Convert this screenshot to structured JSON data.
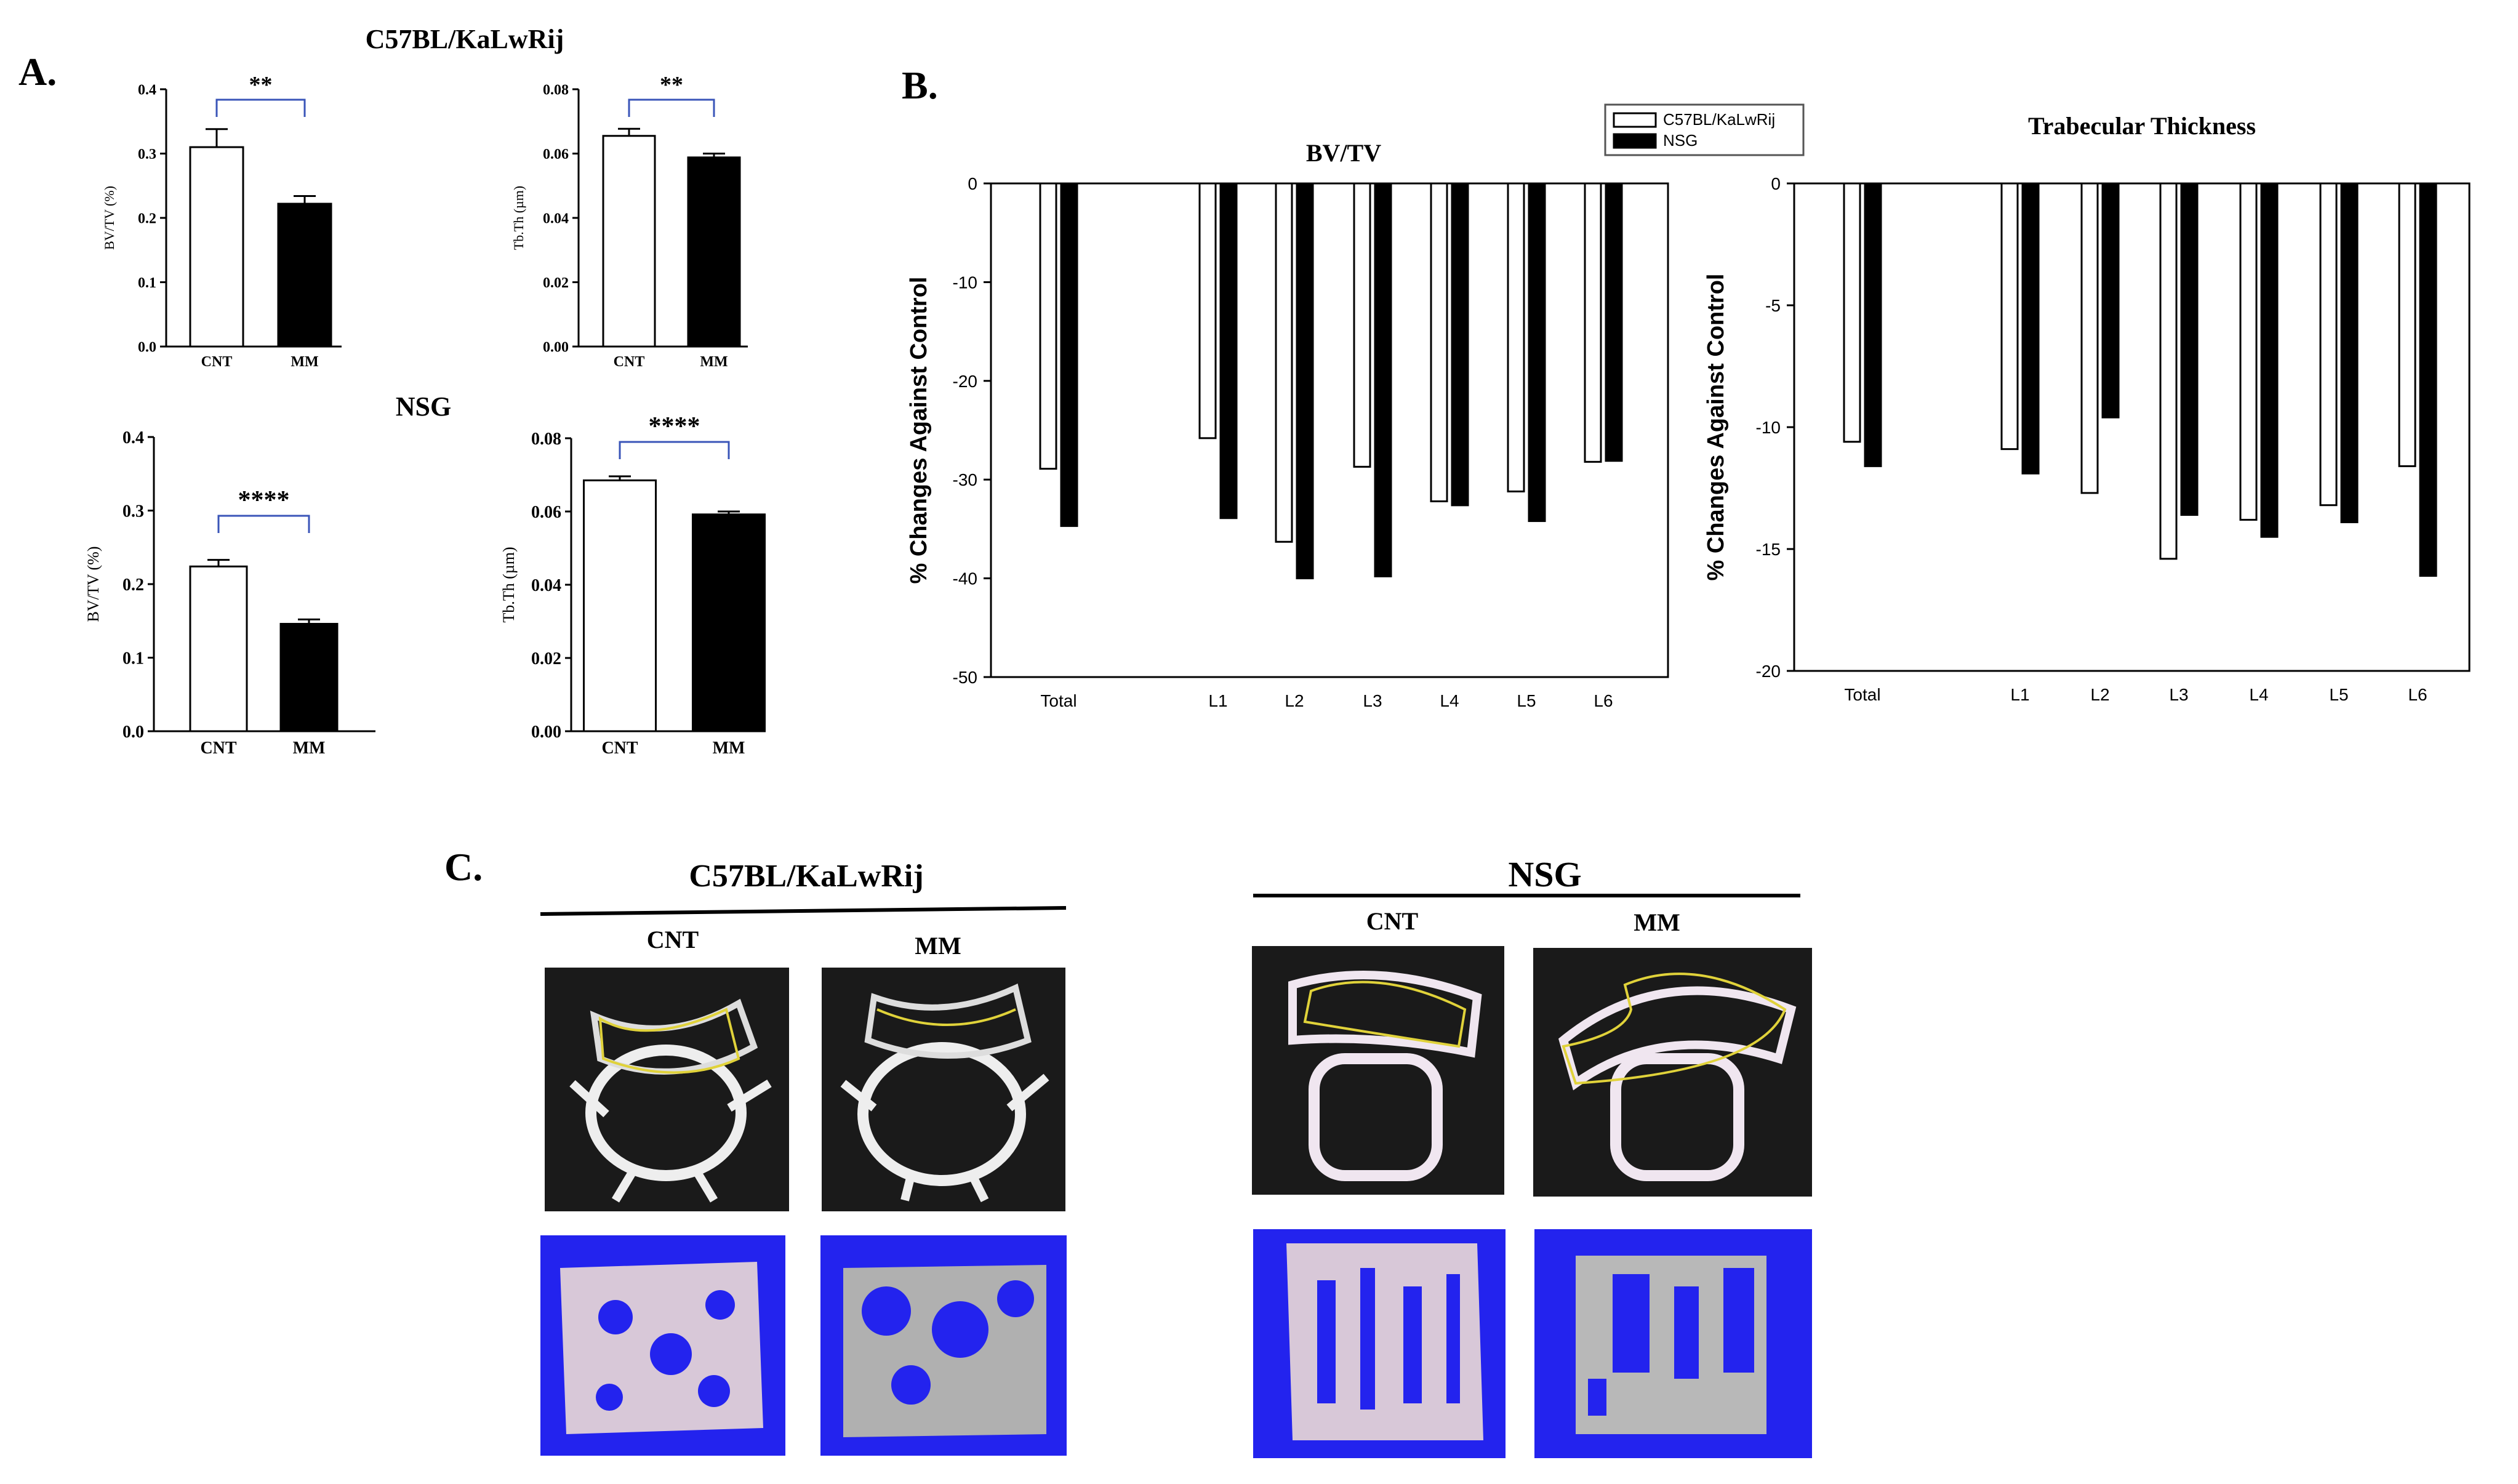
{
  "panels": {
    "a": {
      "label": "A.",
      "strain_top": "C57BL/KaLwRij",
      "strain_bottom": "NSG"
    },
    "b": {
      "label": "B.",
      "legend": [
        "C57BL/KaLwRij",
        "NSG"
      ]
    },
    "c": {
      "label": "C.",
      "groups": [
        {
          "title": "C57BL/KaLwRij",
          "col_labels": [
            "CNT",
            "MM"
          ]
        },
        {
          "title": "NSG",
          "col_labels": [
            "CNT",
            "MM"
          ]
        }
      ]
    }
  },
  "colors": {
    "bar_cnt": "#ffffff",
    "bar_mm": "#000000",
    "bracket": "#3a55b8",
    "render_bg": "#2323ee",
    "micro_ct_bg": "#1a1a1a",
    "roi_outline": "#e0d23a"
  },
  "chart_data": [
    {
      "id": "a1",
      "type": "bar",
      "title": "",
      "ylabel": "BV/TV (%)",
      "xlabel": "",
      "categories": [
        "CNT",
        "MM"
      ],
      "values": [
        0.31,
        0.222
      ],
      "errors": [
        0.028,
        0.012
      ],
      "ylim": [
        0,
        0.4
      ],
      "yticks": [
        "0.0",
        "0.1",
        "0.2",
        "0.3",
        "0.4"
      ],
      "significance": "**"
    },
    {
      "id": "a2",
      "type": "bar",
      "title": "",
      "ylabel": "Tb.Th (µm)",
      "xlabel": "",
      "categories": [
        "CNT",
        "MM"
      ],
      "values": [
        0.0655,
        0.0588
      ],
      "errors": [
        0.0022,
        0.0012
      ],
      "ylim": [
        0,
        0.08
      ],
      "yticks": [
        "0.00",
        "0.02",
        "0.04",
        "0.06",
        "0.08"
      ],
      "significance": "**"
    },
    {
      "id": "a3",
      "type": "bar",
      "title": "",
      "ylabel": "BV/TV (%)",
      "xlabel": "",
      "categories": [
        "CNT",
        "MM"
      ],
      "values": [
        0.224,
        0.146
      ],
      "errors": [
        0.009,
        0.006
      ],
      "ylim": [
        0,
        0.4
      ],
      "yticks": [
        "0.0",
        "0.1",
        "0.2",
        "0.3",
        "0.4"
      ],
      "significance": "****"
    },
    {
      "id": "a4",
      "type": "bar",
      "title": "",
      "ylabel": "Tb.Th (µm)",
      "xlabel": "",
      "categories": [
        "CNT",
        "MM"
      ],
      "values": [
        0.0685,
        0.0592
      ],
      "errors": [
        0.0011,
        0.0008
      ],
      "ylim": [
        0,
        0.08
      ],
      "yticks": [
        "0.00",
        "0.02",
        "0.04",
        "0.06",
        "0.08"
      ],
      "significance": "****"
    },
    {
      "id": "b1",
      "type": "bar",
      "title": "BV/TV",
      "ylabel": "% Changes Against Control",
      "xlabel": "",
      "categories": [
        "Total",
        "L1",
        "L2",
        "L3",
        "L4",
        "L5",
        "L6"
      ],
      "series": [
        {
          "name": "C57BL/KaLwRij",
          "values": [
            -28.9,
            -25.8,
            -36.3,
            -28.7,
            -32.2,
            -31.2,
            -28.2
          ]
        },
        {
          "name": "NSG",
          "values": [
            -34.7,
            -33.9,
            -40.0,
            -39.8,
            -32.6,
            -34.2,
            -28.1
          ]
        }
      ],
      "ylim": [
        -50,
        0
      ],
      "yticks": [
        "0",
        "-10",
        "-20",
        "-30",
        "-40",
        "-50"
      ]
    },
    {
      "id": "b2",
      "type": "bar",
      "title": "Trabecular Thickness",
      "ylabel": "% Changes Against Control",
      "xlabel": "",
      "categories": [
        "Total",
        "L1",
        "L2",
        "L3",
        "L4",
        "L5",
        "L6"
      ],
      "series": [
        {
          "name": "C57BL/KaLwRij",
          "values": [
            -10.6,
            -10.9,
            -12.7,
            -15.4,
            -13.8,
            -13.2,
            -11.6
          ]
        },
        {
          "name": "NSG",
          "values": [
            -11.6,
            -11.9,
            -9.6,
            -13.6,
            -14.5,
            -13.9,
            -16.1
          ]
        }
      ],
      "ylim": [
        -20,
        0
      ],
      "yticks": [
        "0",
        "-5",
        "-10",
        "-15",
        "-20"
      ]
    }
  ]
}
